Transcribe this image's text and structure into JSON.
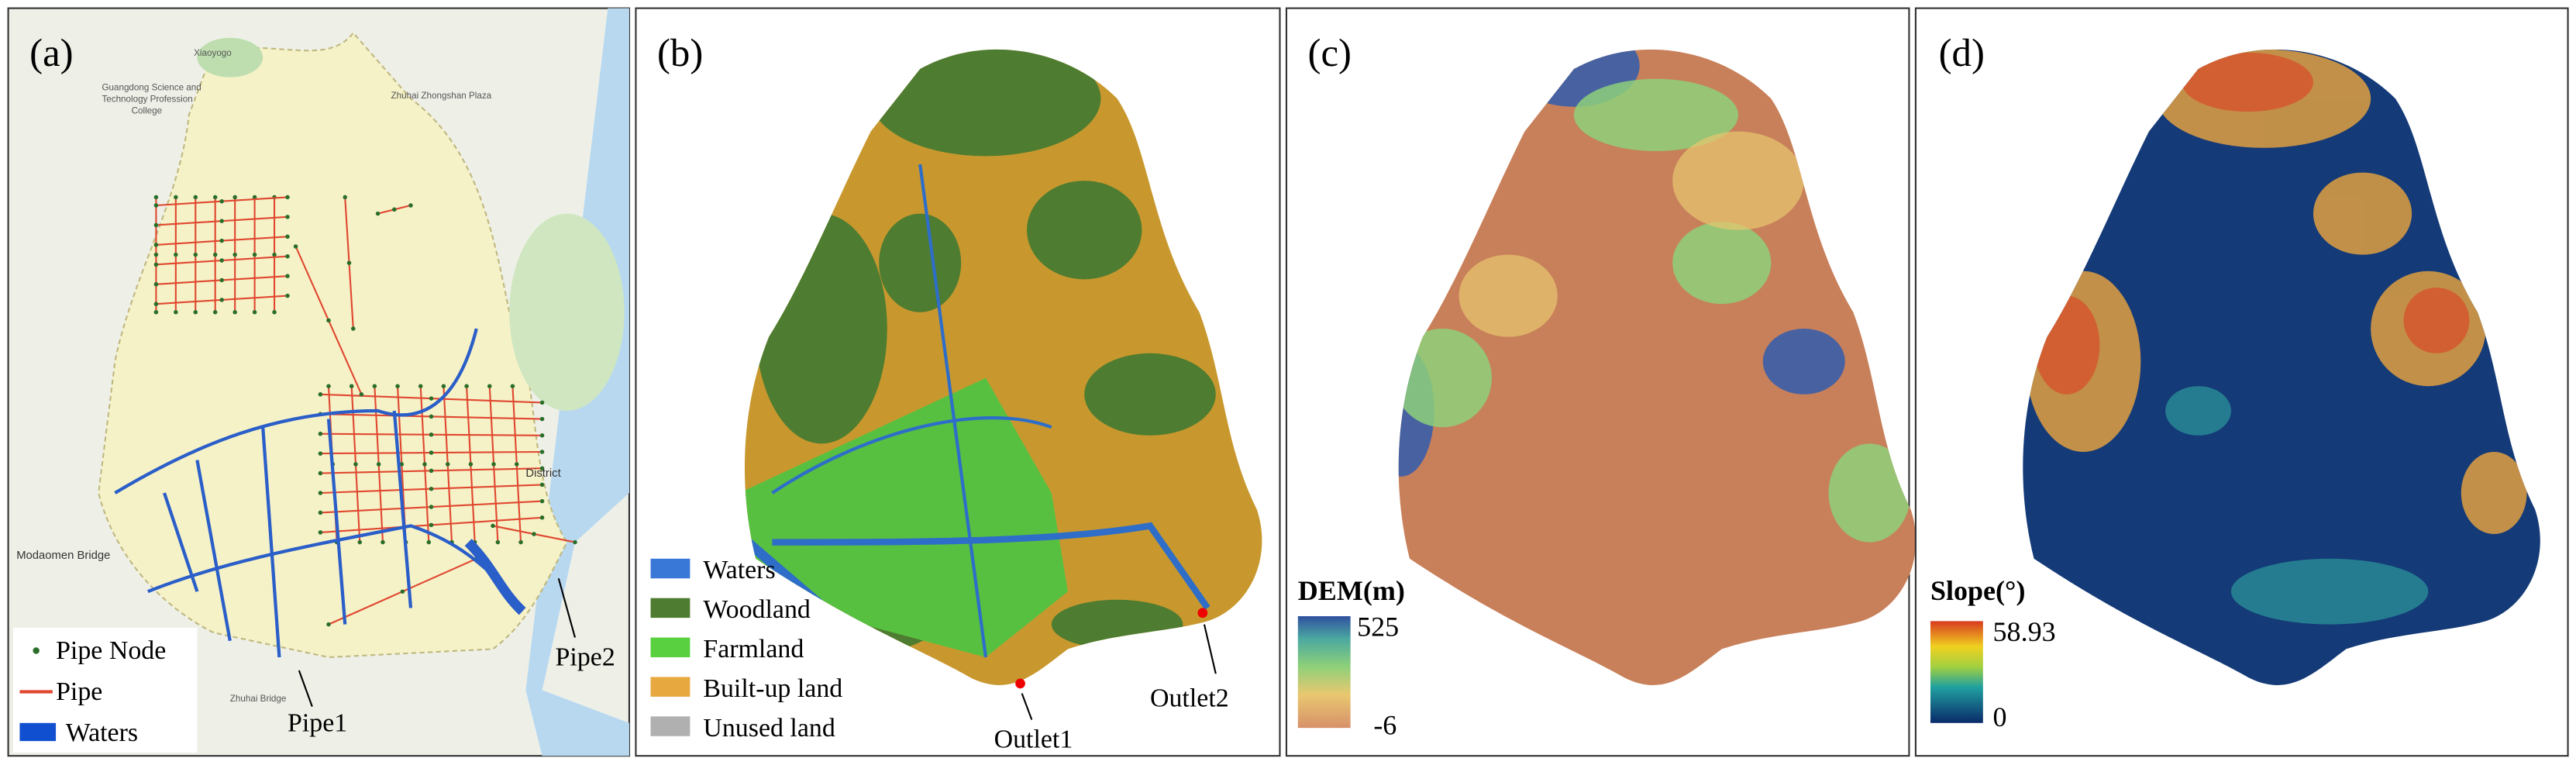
{
  "panels": [
    {
      "label": "(a)",
      "legend": [
        "Pipe Node",
        "Pipe",
        "Waters"
      ],
      "annotations": [
        "Pipe1",
        "Pipe2"
      ],
      "place_names": [
        "Xiaoyogo",
        "Guangdong Science and",
        "Technology Profession",
        "College",
        "Zhuhai Zhongshan Plaza",
        "District",
        "Modaomen Bridge",
        "Zhuhai Bridge"
      ]
    },
    {
      "label": "(b)",
      "legend": [
        "Waters",
        "Woodland",
        "Farmland",
        "Built-up land",
        "Unused land"
      ],
      "annotations": [
        "Outlet1",
        "Outlet2"
      ]
    },
    {
      "label": "(c)",
      "colorbar": {
        "title": "DEM(m)",
        "max": 525,
        "min": -6
      }
    },
    {
      "label": "(d)",
      "colorbar": {
        "title": "Slope(°)",
        "max": 58.93,
        "min": 0
      }
    }
  ]
}
